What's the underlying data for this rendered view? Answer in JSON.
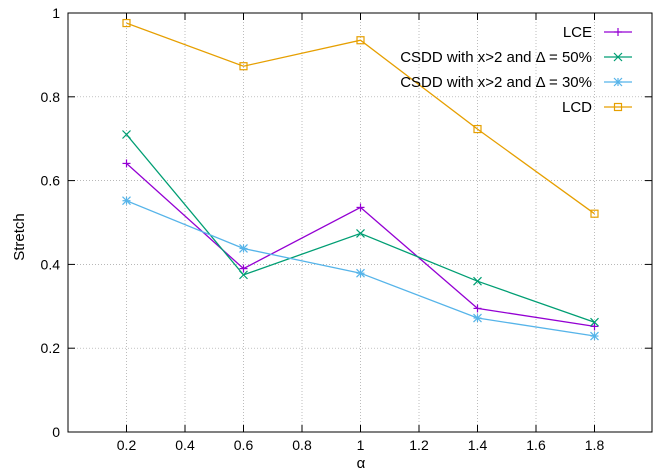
{
  "chart_data": {
    "type": "line",
    "xlabel": "α",
    "ylabel": "Stretch",
    "xlim": [
      0,
      2.0
    ],
    "ylim": [
      0,
      1
    ],
    "x_ticks": [
      0.2,
      0.4,
      0.6,
      0.8,
      1,
      1.2,
      1.4,
      1.6,
      1.8
    ],
    "x_tick_labels": [
      "0.2",
      "0.4",
      "0.6",
      "0.8",
      "1",
      "1.2",
      "1.4",
      "1.6",
      "1.8"
    ],
    "y_ticks": [
      0,
      0.2,
      0.4,
      0.6,
      0.8,
      1
    ],
    "y_tick_labels": [
      "0",
      "0.2",
      "0.4",
      "0.6",
      "0.8",
      "1"
    ],
    "grid": true,
    "legend_position": "top-right",
    "series": [
      {
        "name": "LCE",
        "color": "#9400d3",
        "marker": "plus",
        "x": [
          0.2,
          0.6,
          1.0,
          1.4,
          1.8
        ],
        "values": [
          0.641,
          0.39,
          0.536,
          0.295,
          0.252
        ]
      },
      {
        "name": "CSDD with x>2 and Δ = 50%",
        "color": "#009e73",
        "marker": "cross",
        "x": [
          0.2,
          0.6,
          1.0,
          1.4,
          1.8
        ],
        "values": [
          0.71,
          0.375,
          0.474,
          0.36,
          0.262
        ]
      },
      {
        "name": "CSDD with x>2 and Δ = 30%",
        "color": "#56b4e9",
        "marker": "star",
        "x": [
          0.2,
          0.6,
          1.0,
          1.4,
          1.8
        ],
        "values": [
          0.552,
          0.438,
          0.379,
          0.272,
          0.229
        ]
      },
      {
        "name": "LCD",
        "color": "#e69f00",
        "marker": "square",
        "x": [
          0.2,
          0.6,
          1.0,
          1.4,
          1.8
        ],
        "values": [
          0.976,
          0.873,
          0.935,
          0.723,
          0.521
        ]
      }
    ]
  }
}
